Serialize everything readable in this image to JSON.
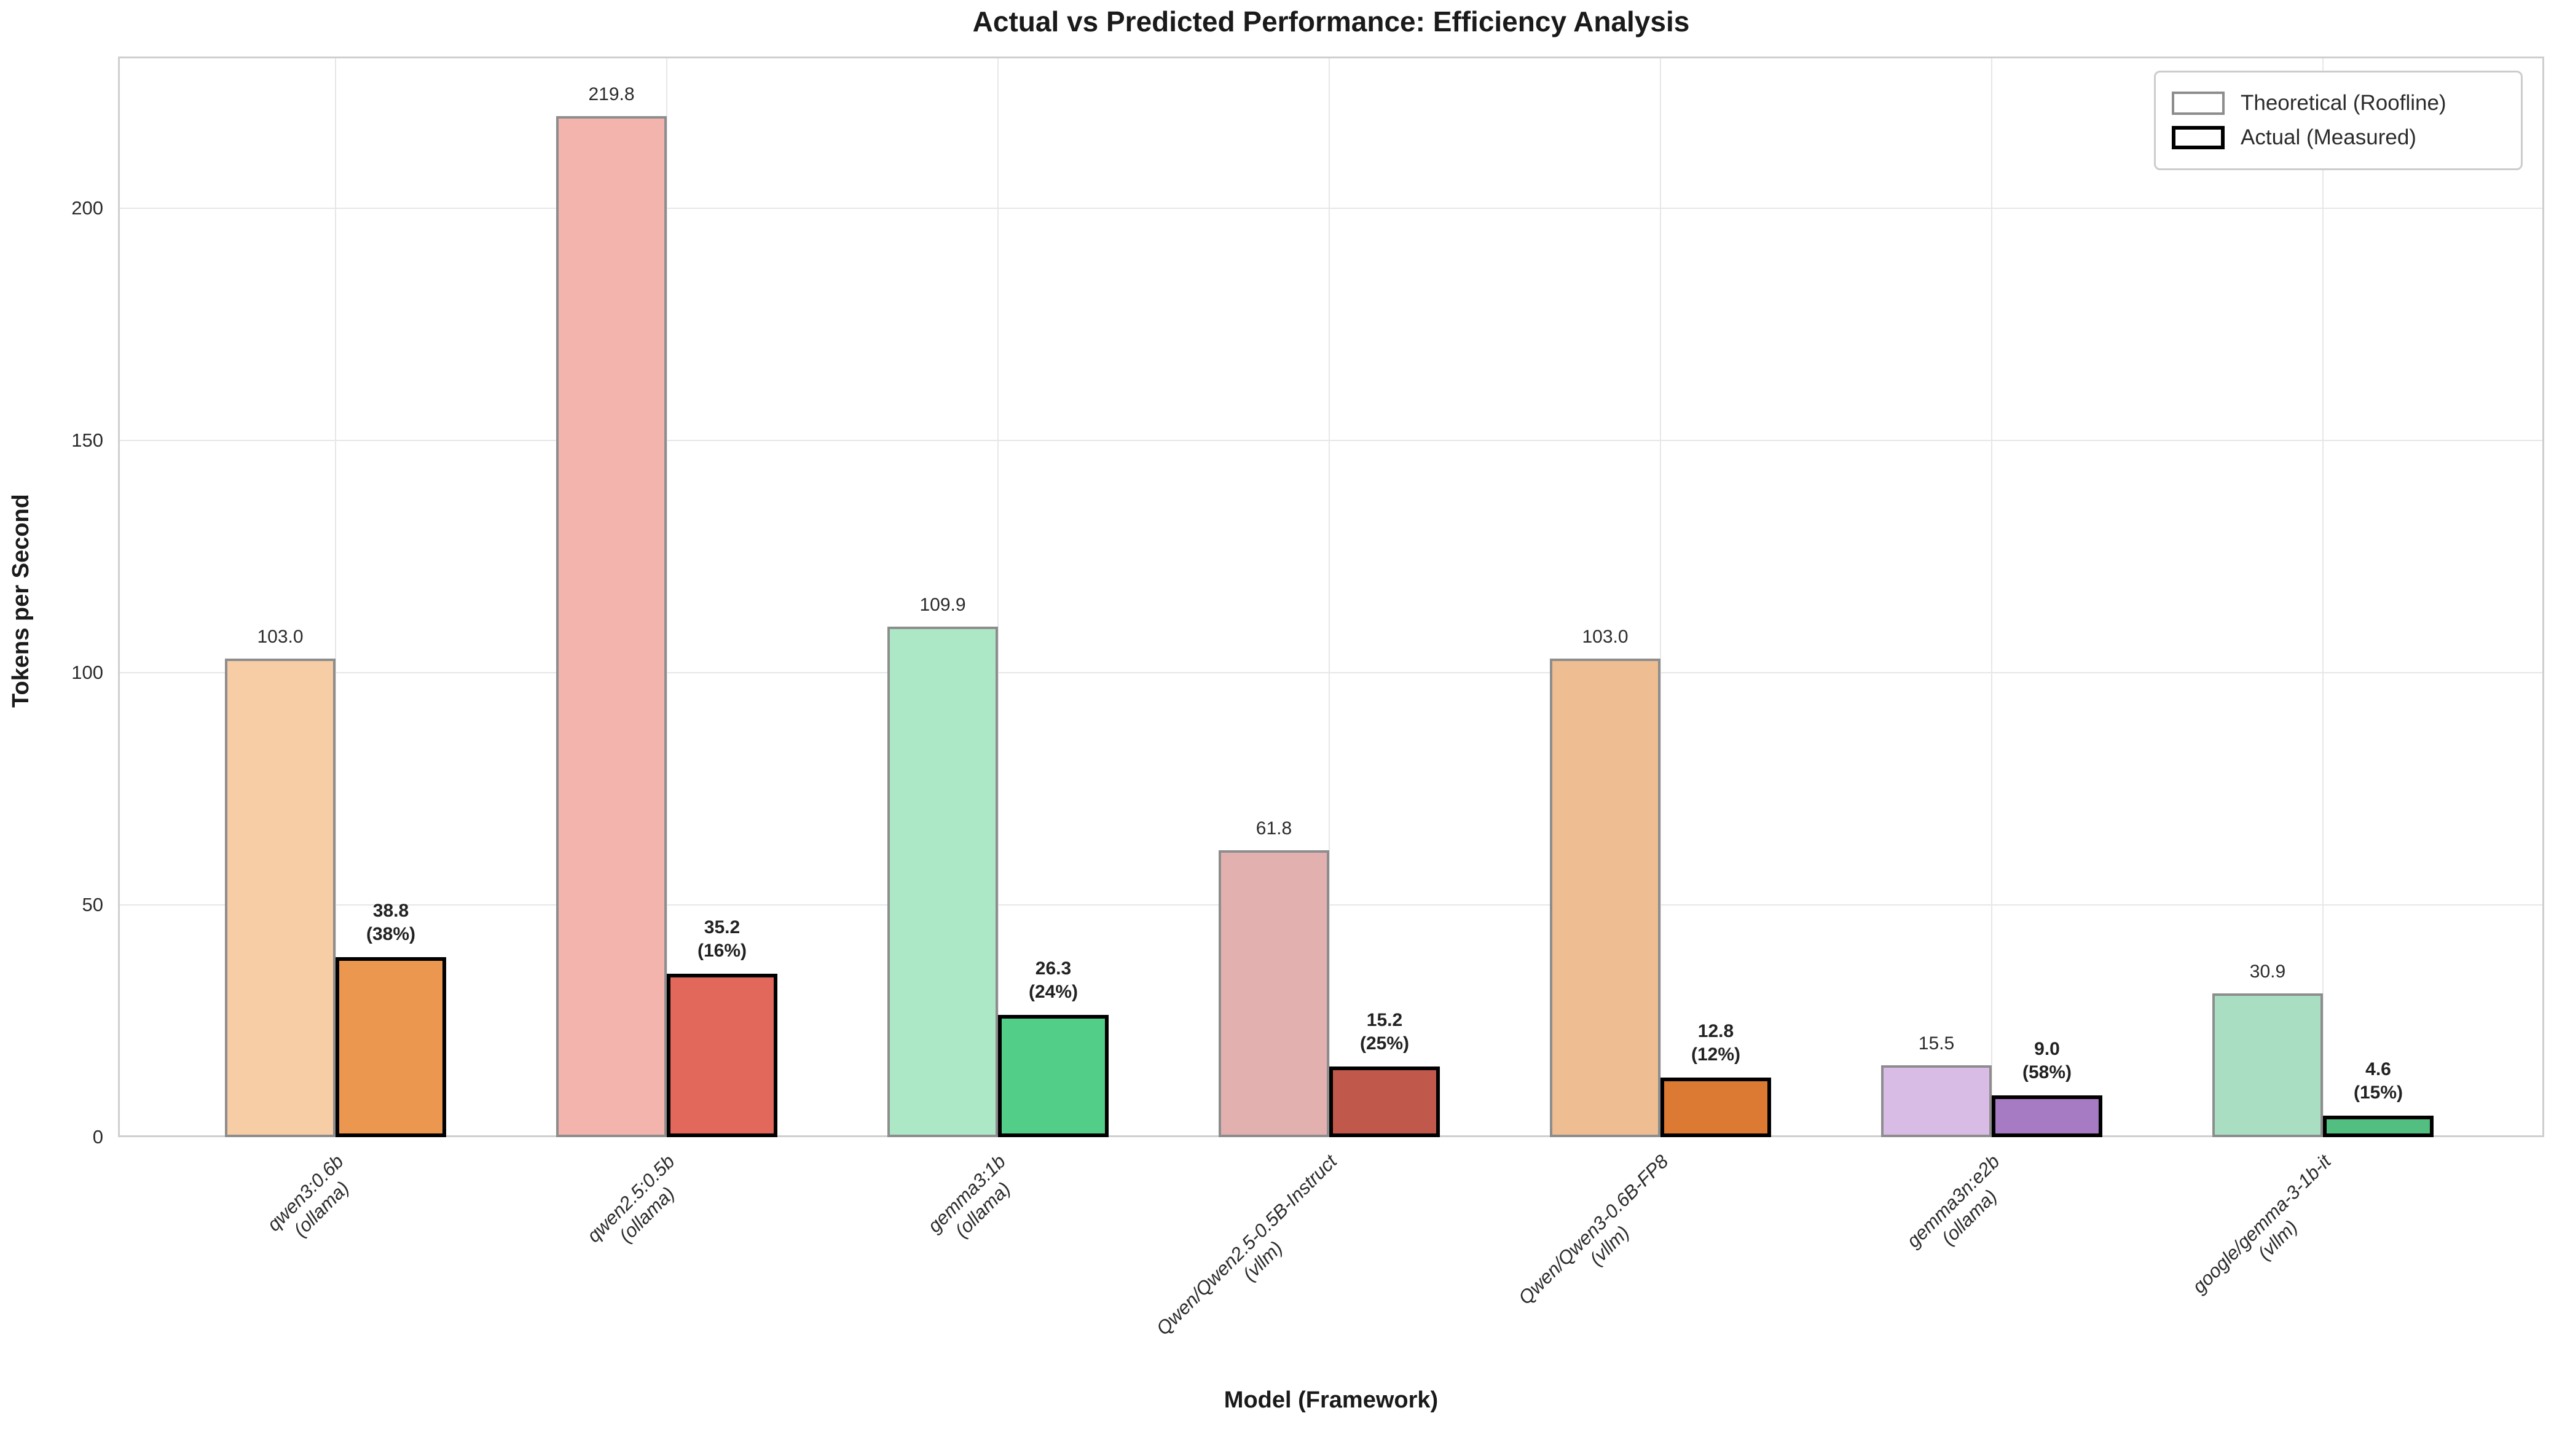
{
  "title": "Actual vs Predicted Performance: Efficiency Analysis",
  "chart_data": {
    "type": "bar",
    "title": "Actual vs Predicted Performance: Efficiency Analysis",
    "xlabel": "Model (Framework)",
    "ylabel": "Tokens per Second",
    "ylim": [
      0,
      230
    ],
    "yticks": [
      "0",
      "50",
      "100",
      "150",
      "200"
    ],
    "ytick_values": [
      0,
      50,
      100,
      150,
      200
    ],
    "grid": true,
    "legend": {
      "position": "upper right",
      "entries": [
        {
          "label": "Theoretical (Roofline)",
          "swatch_color": "#f6cda4",
          "swatch_border": "#8d8d8d"
        },
        {
          "label": "Actual (Measured)",
          "swatch_color": "#ec974f",
          "swatch_border": "#000000"
        }
      ]
    },
    "series_names": [
      "Theoretical (Roofline)",
      "Actual (Measured)"
    ],
    "groups": [
      {
        "model": "qwen3:0.6b",
        "framework": "(ollama)",
        "theoretical": 103.0,
        "actual": 38.8,
        "theo_label": "103.0",
        "act_label": "38.8",
        "pct_label": "(38%)",
        "theo_color": "#f6cda4",
        "act_color": "#ec974f"
      },
      {
        "model": "qwen2.5:0.5b",
        "framework": "(ollama)",
        "theoretical": 219.8,
        "actual": 35.2,
        "theo_label": "219.8",
        "act_label": "35.2",
        "pct_label": "(16%)",
        "theo_color": "#f4b4ae",
        "act_color": "#e2685b"
      },
      {
        "model": "gemma3:1b",
        "framework": "(ollama)",
        "theoretical": 109.9,
        "actual": 26.3,
        "theo_label": "109.9",
        "act_label": "26.3",
        "pct_label": "(24%)",
        "theo_color": "#ace7c6",
        "act_color": "#52ce88"
      },
      {
        "model": "Qwen/Qwen2.5-0.5B-Instruct",
        "framework": "(vllm)",
        "theoretical": 61.8,
        "actual": 15.2,
        "theo_label": "61.8",
        "act_label": "15.2",
        "pct_label": "(25%)",
        "theo_color": "#e2b1af",
        "act_color": "#c1584c"
      },
      {
        "model": "Qwen/Qwen3-0.6B-FP8",
        "framework": "(vllm)",
        "theoretical": 103.0,
        "actual": 12.8,
        "theo_label": "103.0",
        "act_label": "12.8",
        "pct_label": "(12%)",
        "theo_color": "#efbd92",
        "act_color": "#dc7a33"
      },
      {
        "model": "gemma3n:e2b",
        "framework": "(ollama)",
        "theoretical": 15.5,
        "actual": 9.0,
        "theo_label": "15.5",
        "act_label": "9.0",
        "pct_label": "(58%)",
        "theo_color": "#d8bce5",
        "act_color": "#a77bc4"
      },
      {
        "model": "google/gemma-3-1b-it",
        "framework": "(vllm)",
        "theoretical": 30.9,
        "actual": 4.6,
        "theo_label": "30.9",
        "act_label": "4.6",
        "pct_label": "(15%)",
        "theo_color": "#a9dec3",
        "act_color": "#52bf80"
      }
    ]
  }
}
